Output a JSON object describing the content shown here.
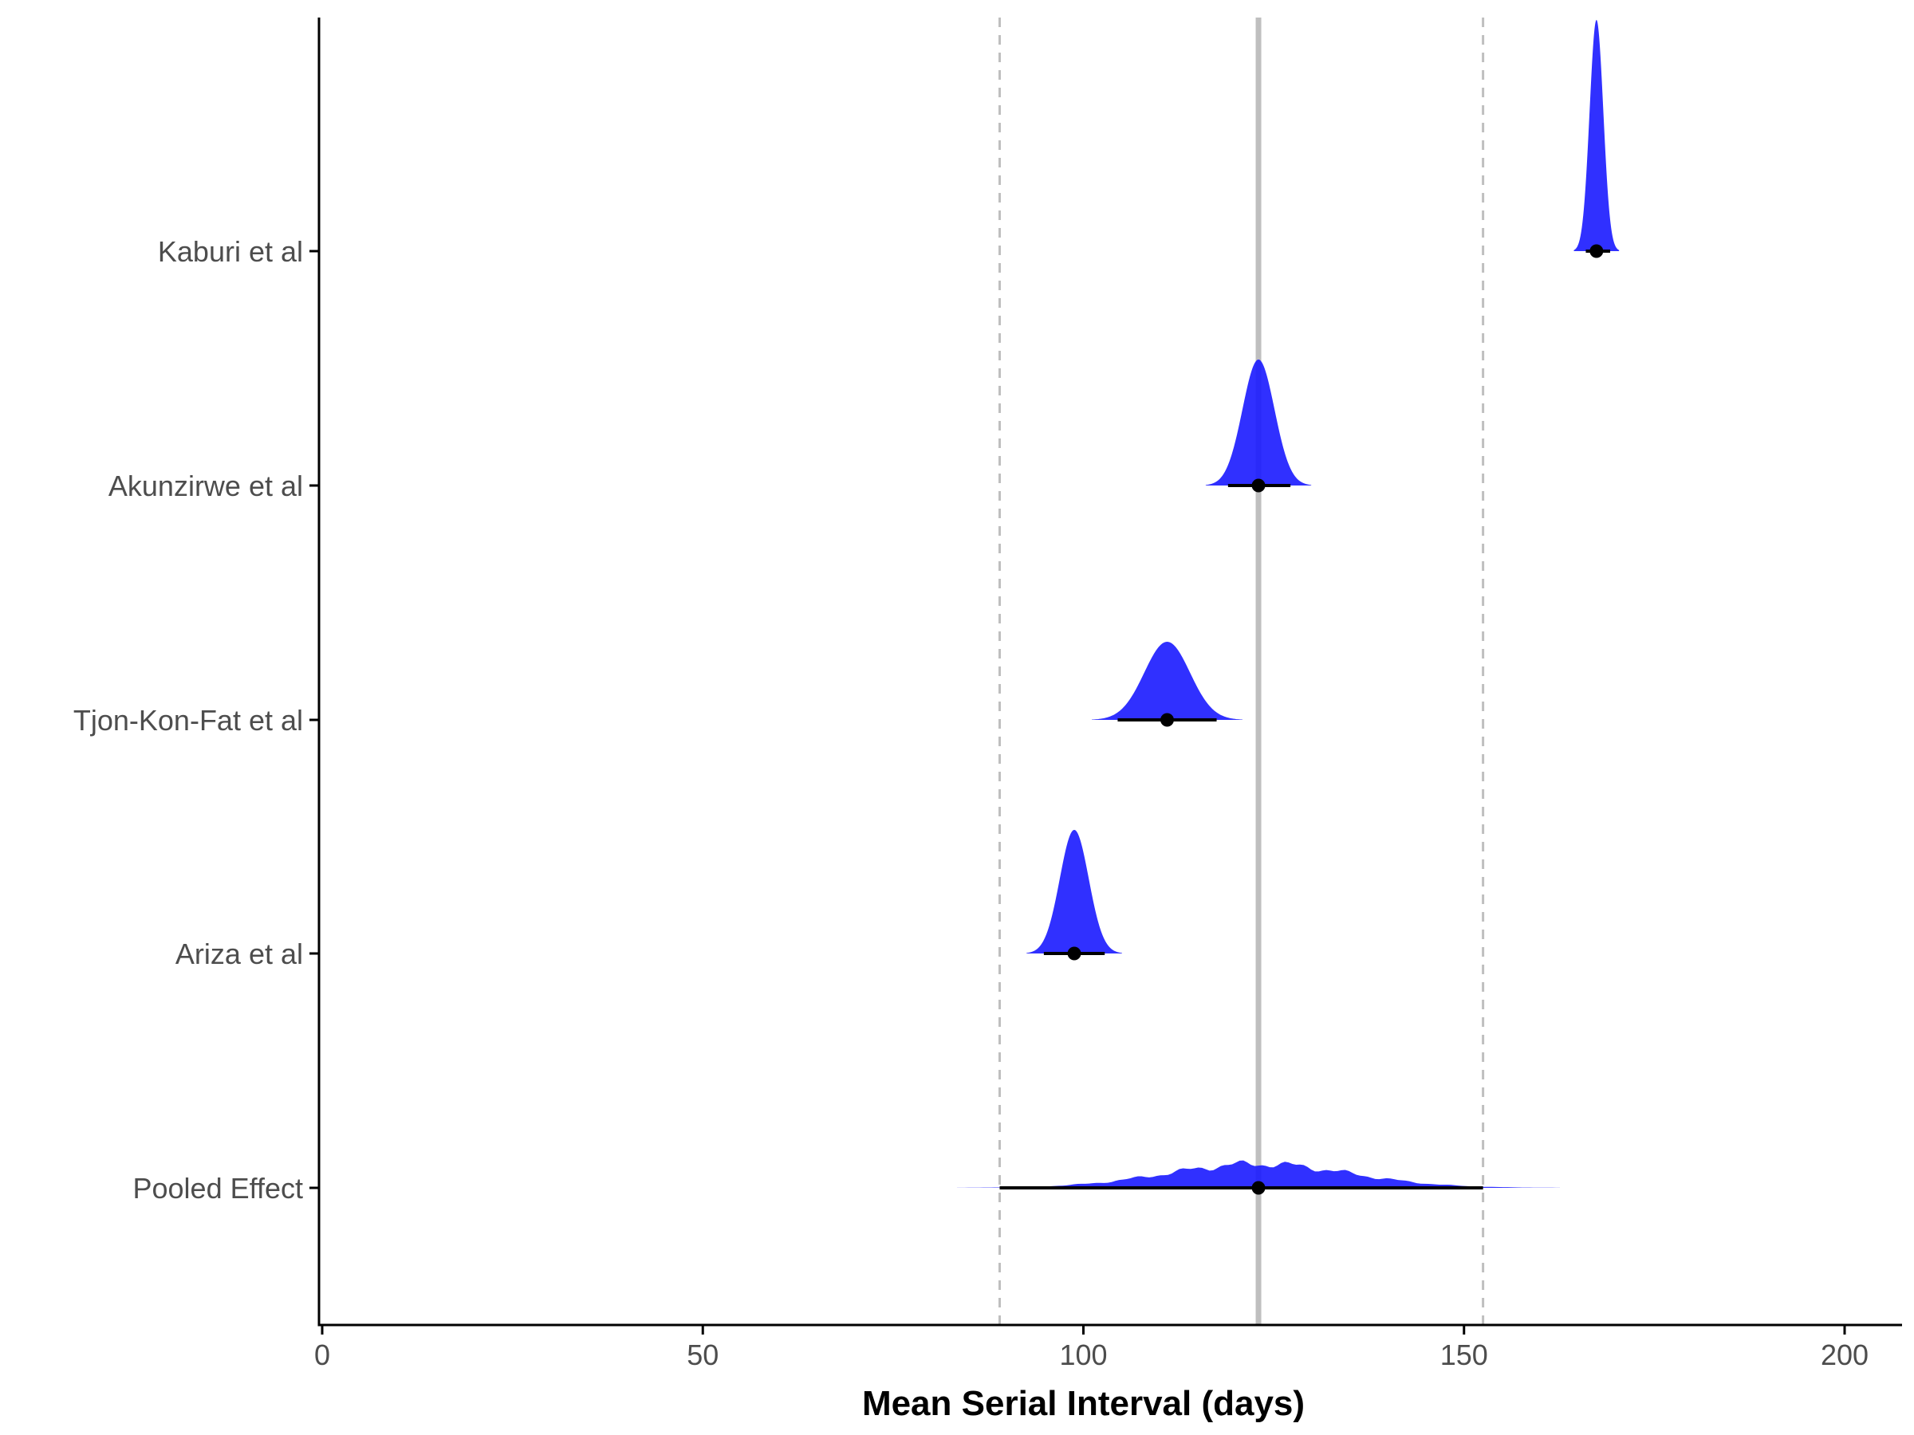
{
  "chart_data": {
    "type": "forest-density",
    "title": "",
    "xlabel": "Mean Serial Interval (days)",
    "ylabel": "",
    "xlim": [
      0,
      200
    ],
    "x_ticks": [
      0,
      50,
      100,
      150,
      200
    ],
    "grid": false,
    "pooled_reference": {
      "mean": 123.0,
      "lower": 89.0,
      "upper": 152.5
    },
    "studies": [
      {
        "label": "Kaburi et al",
        "mean": 167.4,
        "ci_lower": 166.0,
        "ci_upper": 169.2,
        "sd": 0.9
      },
      {
        "label": "Akunzirwe et al",
        "mean": 123.0,
        "ci_lower": 119.0,
        "ci_upper": 127.2,
        "sd": 2.1
      },
      {
        "label": "Tjon-Kon-Fat et al",
        "mean": 111.0,
        "ci_lower": 104.5,
        "ci_upper": 117.5,
        "sd": 3.0
      },
      {
        "label": "Ariza et al",
        "mean": 98.8,
        "ci_lower": 94.8,
        "ci_upper": 102.8,
        "sd": 1.9
      },
      {
        "label": "Pooled Effect",
        "mean": 123.0,
        "ci_lower": 89.0,
        "ci_upper": 152.5,
        "sd": 12.0
      }
    ],
    "colors": {
      "density": "#1a1aff",
      "reference_line": "#bfbfbf",
      "dashed_line": "#bfbfbf",
      "point": "#000000",
      "axis": "#000000"
    }
  }
}
